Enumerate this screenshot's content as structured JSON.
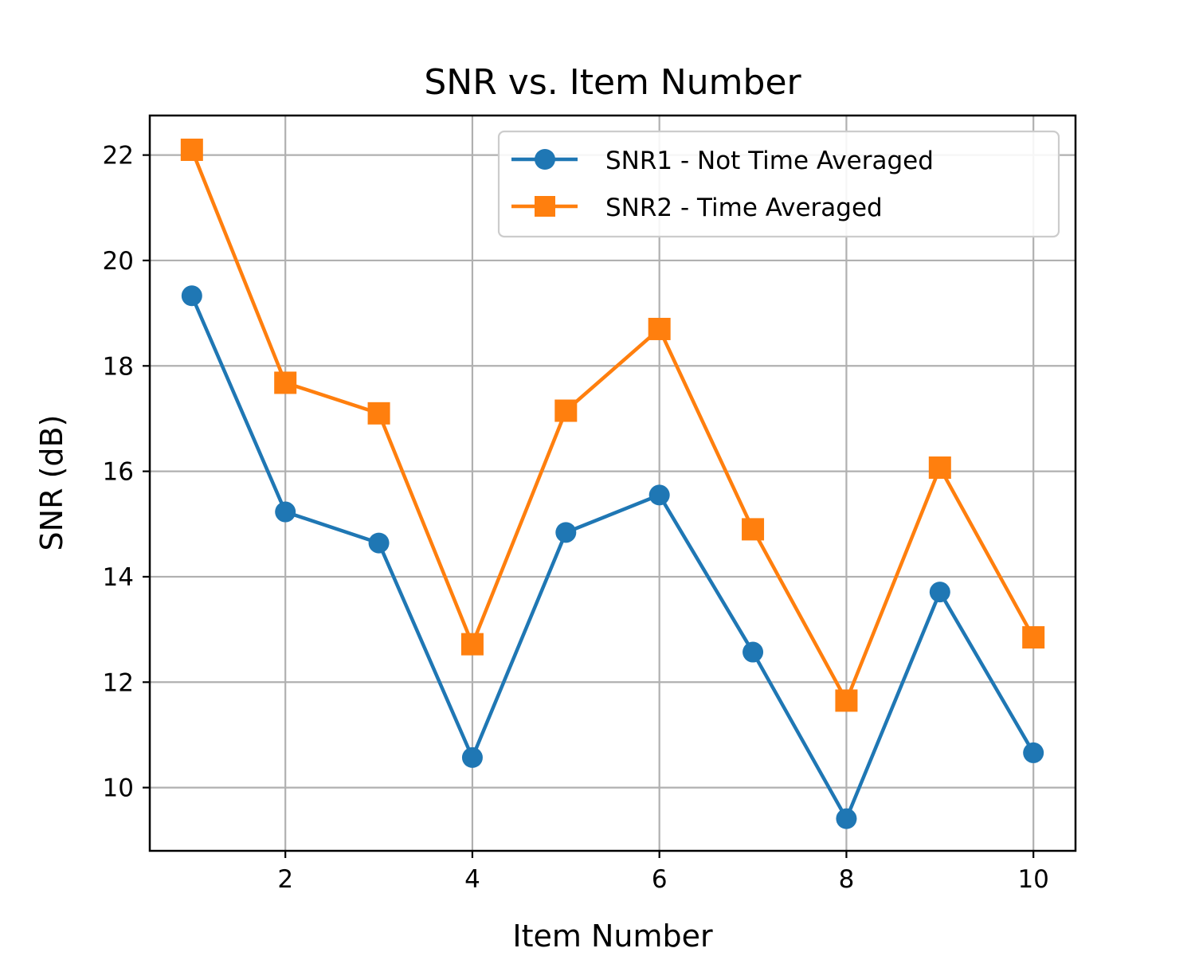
{
  "chart_data": {
    "type": "line",
    "title": "SNR vs. Item Number",
    "xlabel": "Item Number",
    "ylabel": "SNR (dB)",
    "x": [
      1,
      2,
      3,
      4,
      5,
      6,
      7,
      8,
      9,
      10
    ],
    "xlim": [
      0.55,
      10.45
    ],
    "ylim": [
      8.8,
      22.75
    ],
    "xticks": [
      2,
      4,
      6,
      8,
      10
    ],
    "yticks": [
      10,
      12,
      14,
      16,
      18,
      20,
      22
    ],
    "grid": true,
    "legend_position": "top-right",
    "series": [
      {
        "name": "SNR1 - Not Time Averaged",
        "marker": "circle",
        "color": "#1f77b4",
        "values": [
          19.33,
          15.23,
          14.64,
          10.57,
          14.84,
          15.55,
          12.57,
          9.41,
          13.71,
          10.66
        ]
      },
      {
        "name": "SNR2 - Time Averaged",
        "marker": "square",
        "color": "#ff7f0e",
        "values": [
          22.1,
          17.68,
          17.1,
          12.72,
          17.15,
          18.7,
          14.9,
          11.65,
          16.07,
          12.85
        ]
      }
    ]
  }
}
